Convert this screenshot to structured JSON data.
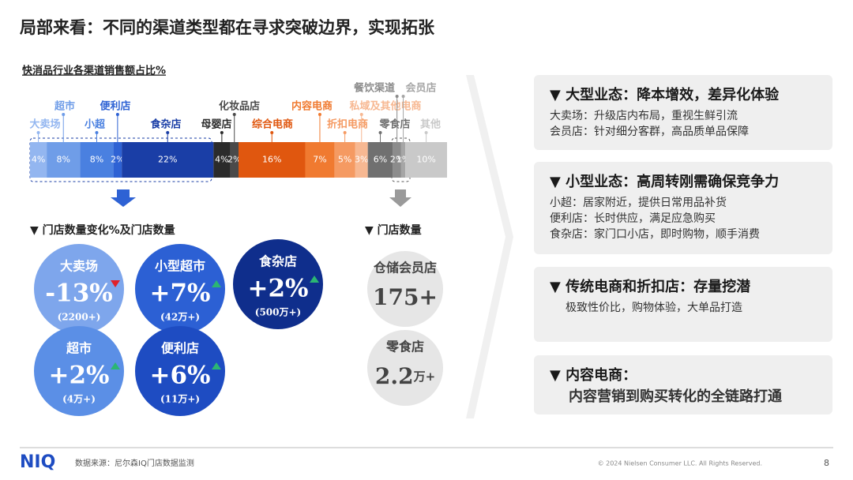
{
  "title": "局部来看：不同的渠道类型都在寻求突破边界，实现拓张",
  "chart_data": {
    "type": "stacked-bar",
    "title": "快消品行业各渠道销售额占比%",
    "categories": [
      "大卖场",
      "超市",
      "小超",
      "便利店",
      "食杂店",
      "母婴店",
      "化妆品店",
      "综合电商",
      "内容电商",
      "折扣电商",
      "私域及其他电商",
      "零食店",
      "餐饮渠道",
      "会员店",
      "其他"
    ],
    "values": [
      4,
      8,
      8,
      2,
      22,
      4,
      2,
      16,
      7,
      5,
      3,
      6,
      2,
      1,
      10
    ],
    "value_labels": [
      "4%",
      "8%",
      "8%",
      "2%",
      "22%",
      "4%",
      "2%",
      "16%",
      "7%",
      "5%",
      "3%",
      "6%",
      "2%",
      "1%",
      "10%"
    ],
    "colors": [
      "#93b6f0",
      "#6f9de8",
      "#4a80e0",
      "#2e62d4",
      "#1a3ea6",
      "#2b2b2b",
      "#4a4a4a",
      "#e0570f",
      "#f07a30",
      "#f59a62",
      "#f7b892",
      "#707070",
      "#8c8c8c",
      "#a6a6a6",
      "#c9c9c9"
    ],
    "xlim": [
      0,
      100
    ]
  },
  "store_change": {
    "heading": "▼  门店数量变化%及门店数量",
    "items": [
      {
        "name": "大卖场",
        "change": "-13%",
        "count": "(2200+)",
        "trend": "down",
        "color": "#7ea6ec"
      },
      {
        "name": "小型超市",
        "change": "+7%",
        "count": "(42万+)",
        "trend": "up",
        "color": "#2c60d4"
      },
      {
        "name": "食杂店",
        "change": "+2%",
        "count": "(500万+)",
        "trend": "up",
        "color": "#0f2e8c"
      },
      {
        "name": "超市",
        "change": "+2%",
        "count": "(4万+)",
        "trend": "up",
        "color": "#5b8fe6"
      },
      {
        "name": "便利店",
        "change": "+6%",
        "count": "(11万+)",
        "trend": "up",
        "color": "#1e4cc2"
      }
    ]
  },
  "store_count": {
    "heading": "▼  门店数量",
    "items": [
      {
        "name": "仓储会员店",
        "number": "175+"
      },
      {
        "name": "零食店",
        "number": "2.2",
        "unit": "万+"
      }
    ]
  },
  "panels": [
    {
      "title": "▼ 大型业态：降本增效，差异化体验",
      "lines": [
        "大卖场：升级店内布局，重视生鲜引流",
        "会员店：针对细分客群，高品质单品保障"
      ]
    },
    {
      "title": "▼ 小型业态：高周转刚需确保竞争力",
      "lines": [
        "小超：居家附近，提供日常用品补货",
        "便利店：长时供应，满足应急购买",
        "食杂店：家门口小店，即时购物，顺手消费"
      ]
    },
    {
      "title": "▼ 传统电商和折扣店：存量挖潜",
      "lines": [
        "极致性价比，购物体验，大单品打造"
      ]
    },
    {
      "title": "▼ 内容电商：",
      "lines": [
        "内容营销到购买转化的全链路打通"
      ]
    }
  ],
  "footer": {
    "logo": "NIQ",
    "source": "数据来源：尼尔森IQ门店数据监测",
    "copyright": "© 2024 Nielsen Consumer LLC. All Rights Reserved.",
    "page": "8"
  }
}
